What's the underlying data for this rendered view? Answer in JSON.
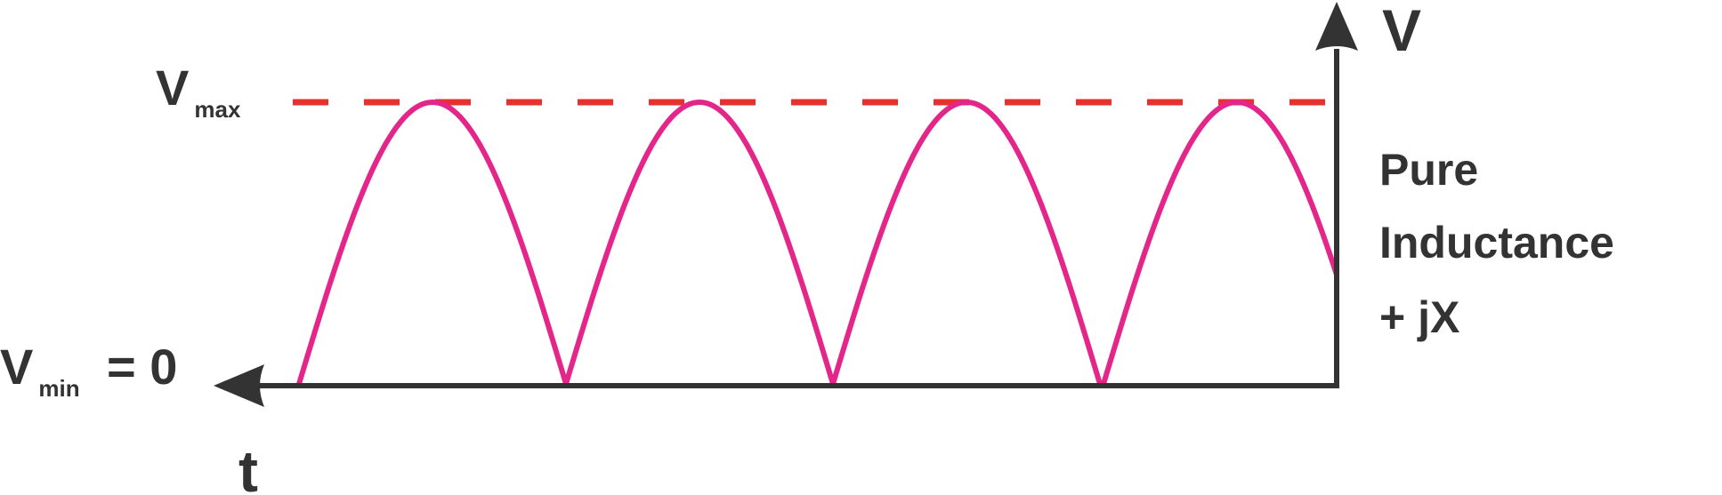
{
  "labels": {
    "v_axis": "V",
    "t_axis": "t",
    "vmax_main": "V",
    "vmax_sub": "max",
    "vmin_main": "V",
    "vmin_sub": "min",
    "vmin_value": "= 0",
    "load_line1": "Pure",
    "load_line2": "Inductance",
    "load_line3": "+ jX"
  },
  "colors": {
    "axis": "#333333",
    "waveform": "#e4268a",
    "vmax_line": "#e8302e",
    "text": "#333333"
  },
  "waveform": {
    "type": "rectified-sine",
    "full_arches": 3,
    "partial_arch": true,
    "peak_level": "Vmax",
    "min_level": "Vmin = 0"
  }
}
